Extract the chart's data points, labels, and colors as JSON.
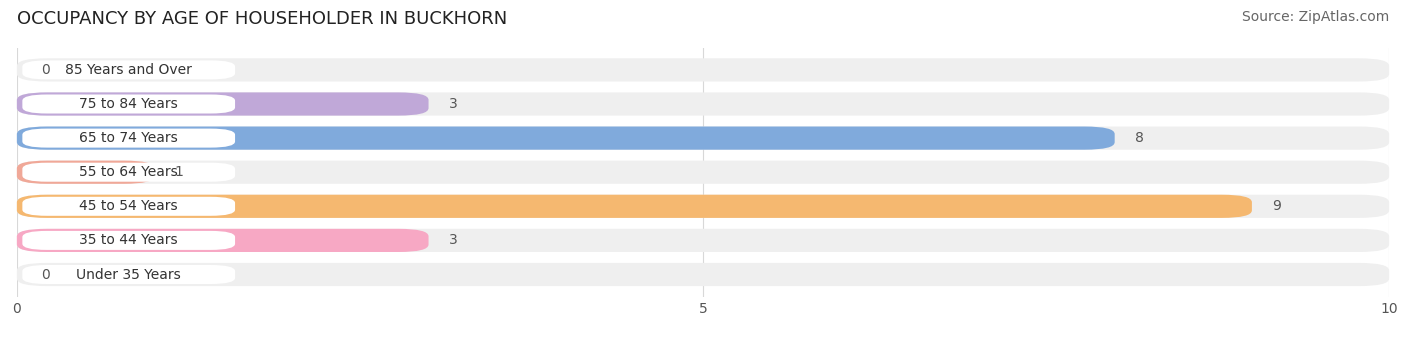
{
  "title": "OCCUPANCY BY AGE OF HOUSEHOLDER IN BUCKHORN",
  "source": "Source: ZipAtlas.com",
  "categories": [
    "Under 35 Years",
    "35 to 44 Years",
    "45 to 54 Years",
    "55 to 64 Years",
    "65 to 74 Years",
    "75 to 84 Years",
    "85 Years and Over"
  ],
  "values": [
    0,
    3,
    9,
    1,
    8,
    3,
    0
  ],
  "bar_colors": [
    "#b0b8e8",
    "#f7a8c4",
    "#f5b870",
    "#f0a898",
    "#80aadc",
    "#c0a8d8",
    "#78d0cc"
  ],
  "bar_bg_color": "#efefef",
  "pill_bg_color": "#ffffff",
  "xlim": [
    0,
    10
  ],
  "xticks": [
    0,
    5,
    10
  ],
  "title_fontsize": 13,
  "source_fontsize": 10,
  "label_fontsize": 10,
  "value_fontsize": 10,
  "bar_height": 0.68,
  "bg_color": "#ffffff",
  "grid_color": "#d8d8d8"
}
